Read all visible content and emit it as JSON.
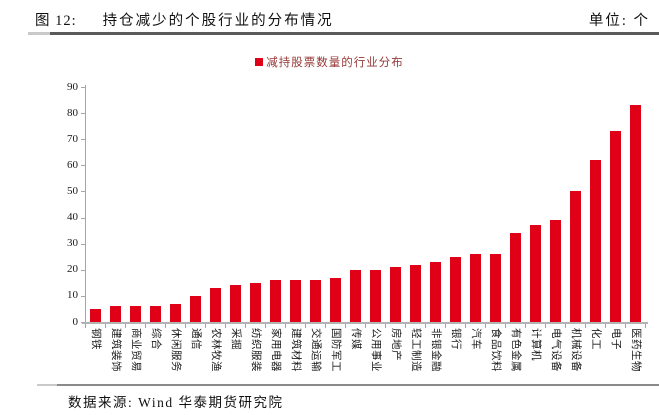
{
  "header": {
    "figure_label": "图 12:",
    "title": "持仓减少的个股行业的分布情况",
    "unit_label": "单位: 个"
  },
  "legend": {
    "label": "减持股票数量的行业分布",
    "marker_color": "#e00017"
  },
  "chart_data": {
    "type": "bar",
    "title": "减持股票数量的行业分布",
    "categories": [
      "钢铁",
      "建筑装饰",
      "商业贸易",
      "综合",
      "休闲服务",
      "通信",
      "农林牧渔",
      "采掘",
      "纺织服装",
      "家用电器",
      "建筑材料",
      "交通运输",
      "国防军工",
      "传媒",
      "公用事业",
      "房地产",
      "轻工制造",
      "非银金融",
      "银行",
      "汽车",
      "食品饮料",
      "有色金属",
      "计算机",
      "电气设备",
      "机械设备",
      "化工",
      "电子",
      "医药生物"
    ],
    "values": [
      5,
      6,
      6,
      6,
      7,
      10,
      13,
      14,
      15,
      16,
      16,
      16,
      17,
      20,
      20,
      21,
      22,
      23,
      25,
      26,
      26,
      34,
      37,
      39,
      50,
      62,
      73,
      83
    ],
    "xlabel": "",
    "ylabel": "",
    "ylim": [
      0,
      90
    ],
    "yticks": [
      0,
      10,
      20,
      30,
      40,
      50,
      60,
      70,
      80,
      90
    ],
    "bar_color": "#e00017",
    "grid": false,
    "legend_position": "top-center"
  },
  "footer": {
    "source": "数据来源: Wind  华泰期货研究院"
  }
}
